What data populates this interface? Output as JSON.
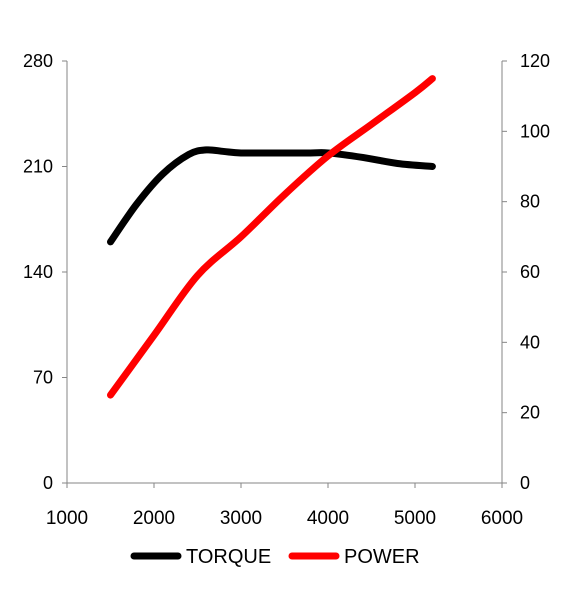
{
  "chart_data": {
    "type": "line",
    "title": "",
    "xlabel": "",
    "ylabel_left": "",
    "ylabel_right": "",
    "xlim": [
      1000,
      6000
    ],
    "ylim_left": [
      0,
      280
    ],
    "ylim_right": [
      0,
      120
    ],
    "x_ticks": [
      "1000",
      "2000",
      "3000",
      "4000",
      "5000",
      "6000"
    ],
    "y_left_ticks": [
      "0",
      "70",
      "140",
      "210",
      "280"
    ],
    "y_right_ticks": [
      "0",
      "20",
      "40",
      "60",
      "80",
      "100",
      "120"
    ],
    "grid": false,
    "legend_position": "bottom",
    "series": [
      {
        "name": "TORQUE",
        "axis": "left",
        "color": "#000000",
        "x": [
          1500,
          1800,
          2100,
          2400,
          2600,
          2800,
          3000,
          3400,
          3800,
          4000,
          4400,
          4800,
          5200
        ],
        "values": [
          160,
          185,
          205,
          218,
          221,
          220,
          219,
          219,
          219,
          219,
          216,
          212,
          210
        ]
      },
      {
        "name": "POWER",
        "axis": "right",
        "color": "#ff0000",
        "x": [
          1500,
          2000,
          2500,
          3000,
          3500,
          4000,
          4500,
          5000,
          5200
        ],
        "values": [
          25,
          42,
          59,
          70,
          82,
          93,
          102,
          111,
          115
        ]
      }
    ]
  }
}
